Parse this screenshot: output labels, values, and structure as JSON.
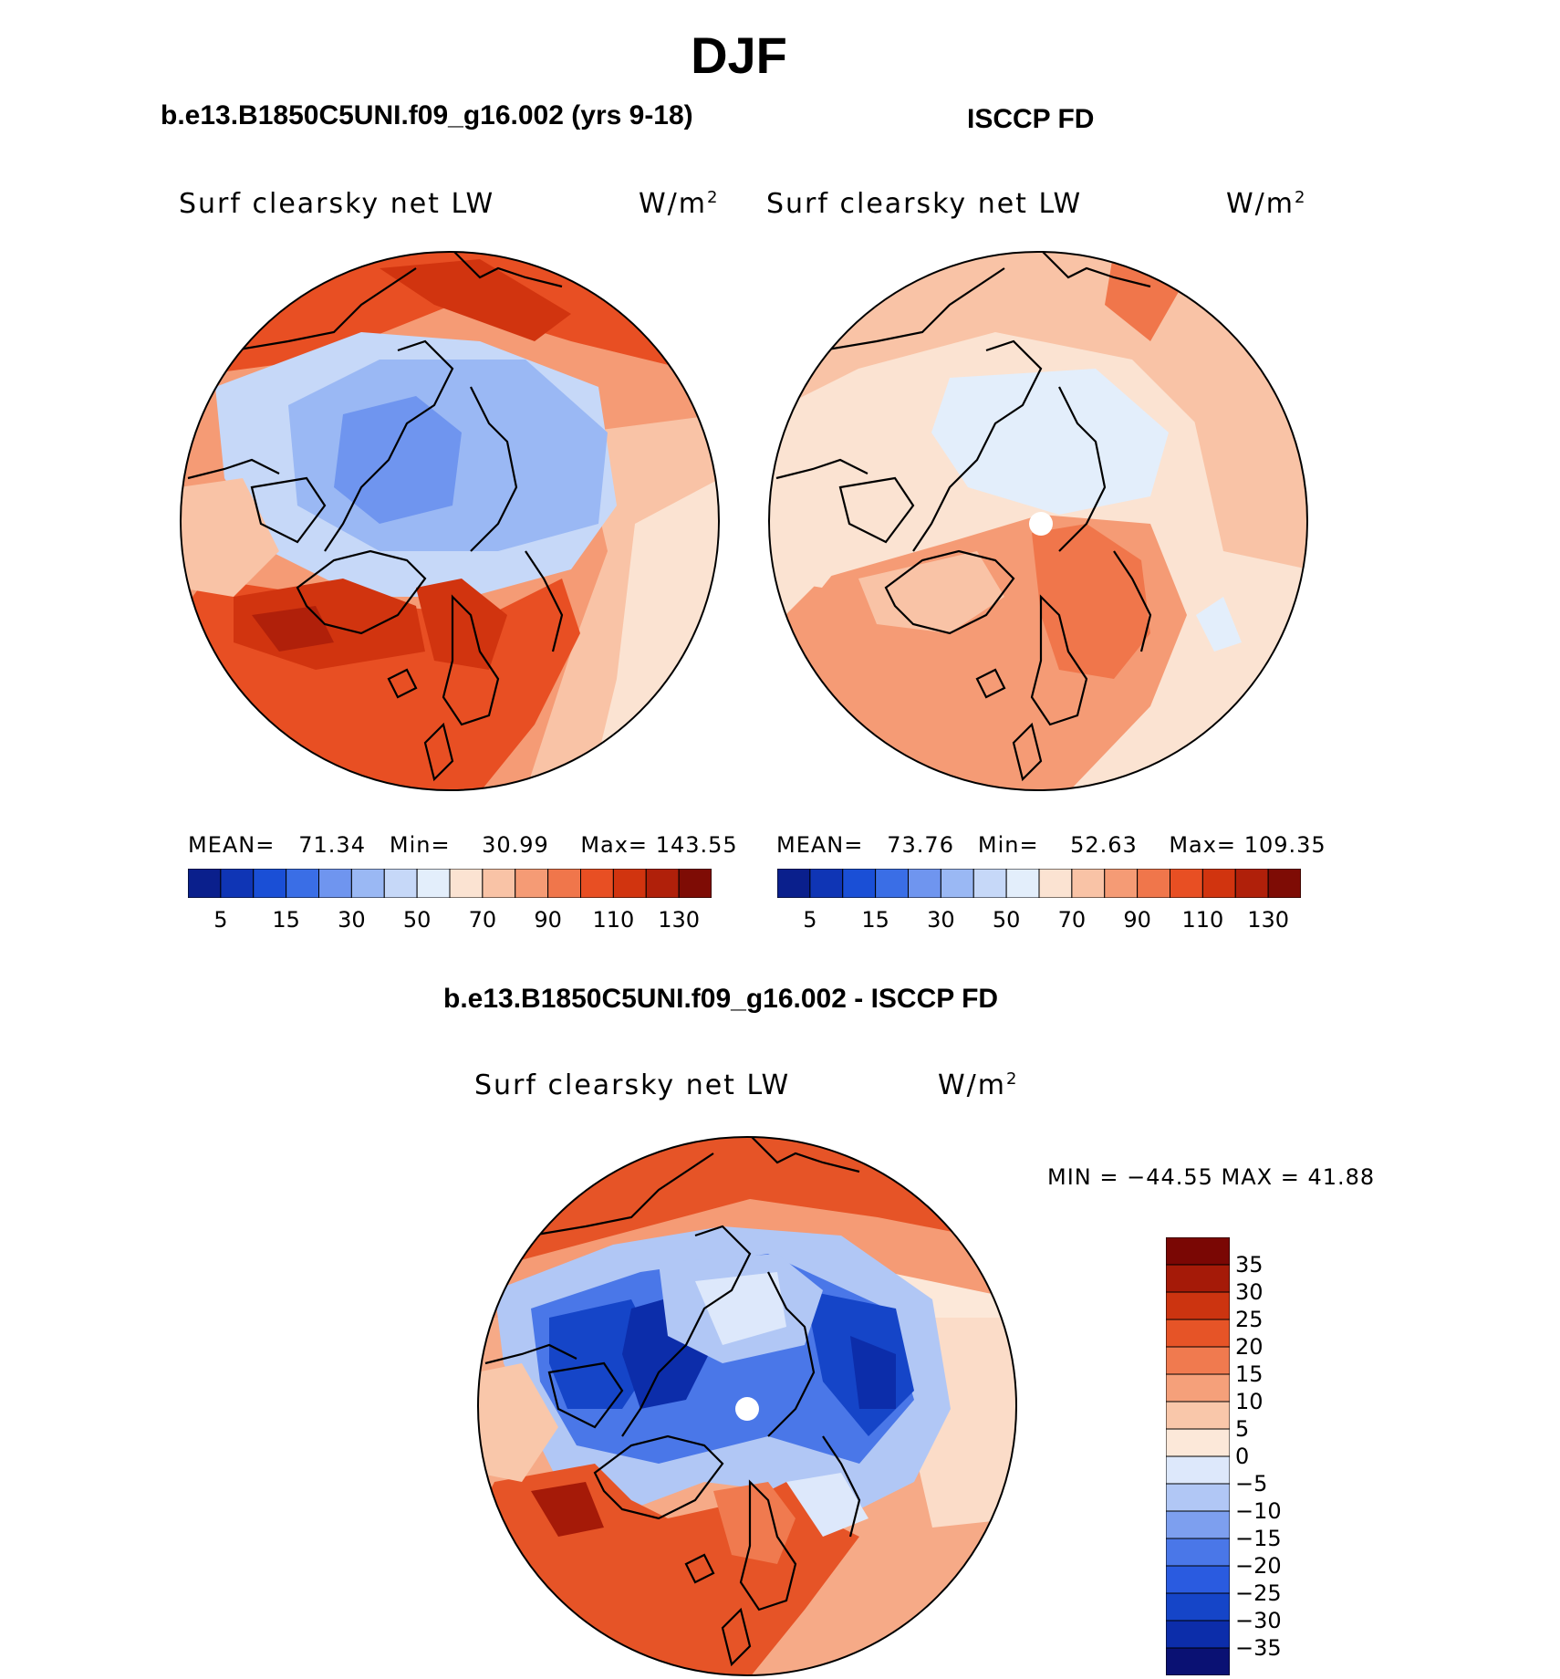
{
  "title": "DJF",
  "panels": {
    "model": {
      "title": "b.e13.B1850C5UNI.f09_g16.002 (yrs 9-18)",
      "label": "Surf clearsky net LW",
      "unit_base": "W/m",
      "unit_sup": "2",
      "mean_label": "MEAN=",
      "mean_value": "71.34",
      "min_label": "Min=",
      "min_value": "30.99",
      "max_label": "Max=",
      "max_value": "143.55",
      "colorbar_ticks": [
        "5",
        "15",
        "30",
        "50",
        "70",
        "90",
        "110",
        "130"
      ]
    },
    "obs": {
      "title": "ISCCP FD",
      "label": "Surf clearsky net LW",
      "unit_base": "W/m",
      "unit_sup": "2",
      "mean_label": "MEAN=",
      "mean_value": "73.76",
      "min_label": "Min=",
      "min_value": "52.63",
      "max_label": "Max=",
      "max_value": "109.35",
      "colorbar_ticks": [
        "5",
        "15",
        "30",
        "50",
        "70",
        "90",
        "110",
        "130"
      ]
    },
    "diff": {
      "title": "b.e13.B1850C5UNI.f09_g16.002 - ISCCP FD",
      "label": "Surf clearsky net LW",
      "unit_base": "W/m",
      "unit_sup": "2",
      "minmax_text": "MIN = −44.55 MAX =   41.88",
      "colorbar_ticks": [
        "35",
        "30",
        "25",
        "20",
        "15",
        "10",
        "5",
        "0",
        "−5",
        "−10",
        "−15",
        "−20",
        "−25",
        "−30",
        "−35"
      ]
    }
  },
  "colors": {
    "abs_scale": [
      "#0a1f8c",
      "#0f35b5",
      "#1a4fd6",
      "#3a6ee6",
      "#6f95ef",
      "#9ab8f4",
      "#c6d8f8",
      "#e3eefb",
      "#fbe3d2",
      "#f9c3a6",
      "#f59b75",
      "#f0764b",
      "#e84f23",
      "#d1340f",
      "#b0200a",
      "#7e0c05"
    ],
    "diff_scale": [
      "#0a1173",
      "#0c2daa",
      "#1545c8",
      "#2a5be0",
      "#4a77e8",
      "#7d9fef",
      "#b1c7f5",
      "#dde8fb",
      "#fce8d9",
      "#f9c7aa",
      "#f5a07a",
      "#f07a4f",
      "#e65427",
      "#cc3410",
      "#a51a08",
      "#7a0704"
    ]
  }
}
